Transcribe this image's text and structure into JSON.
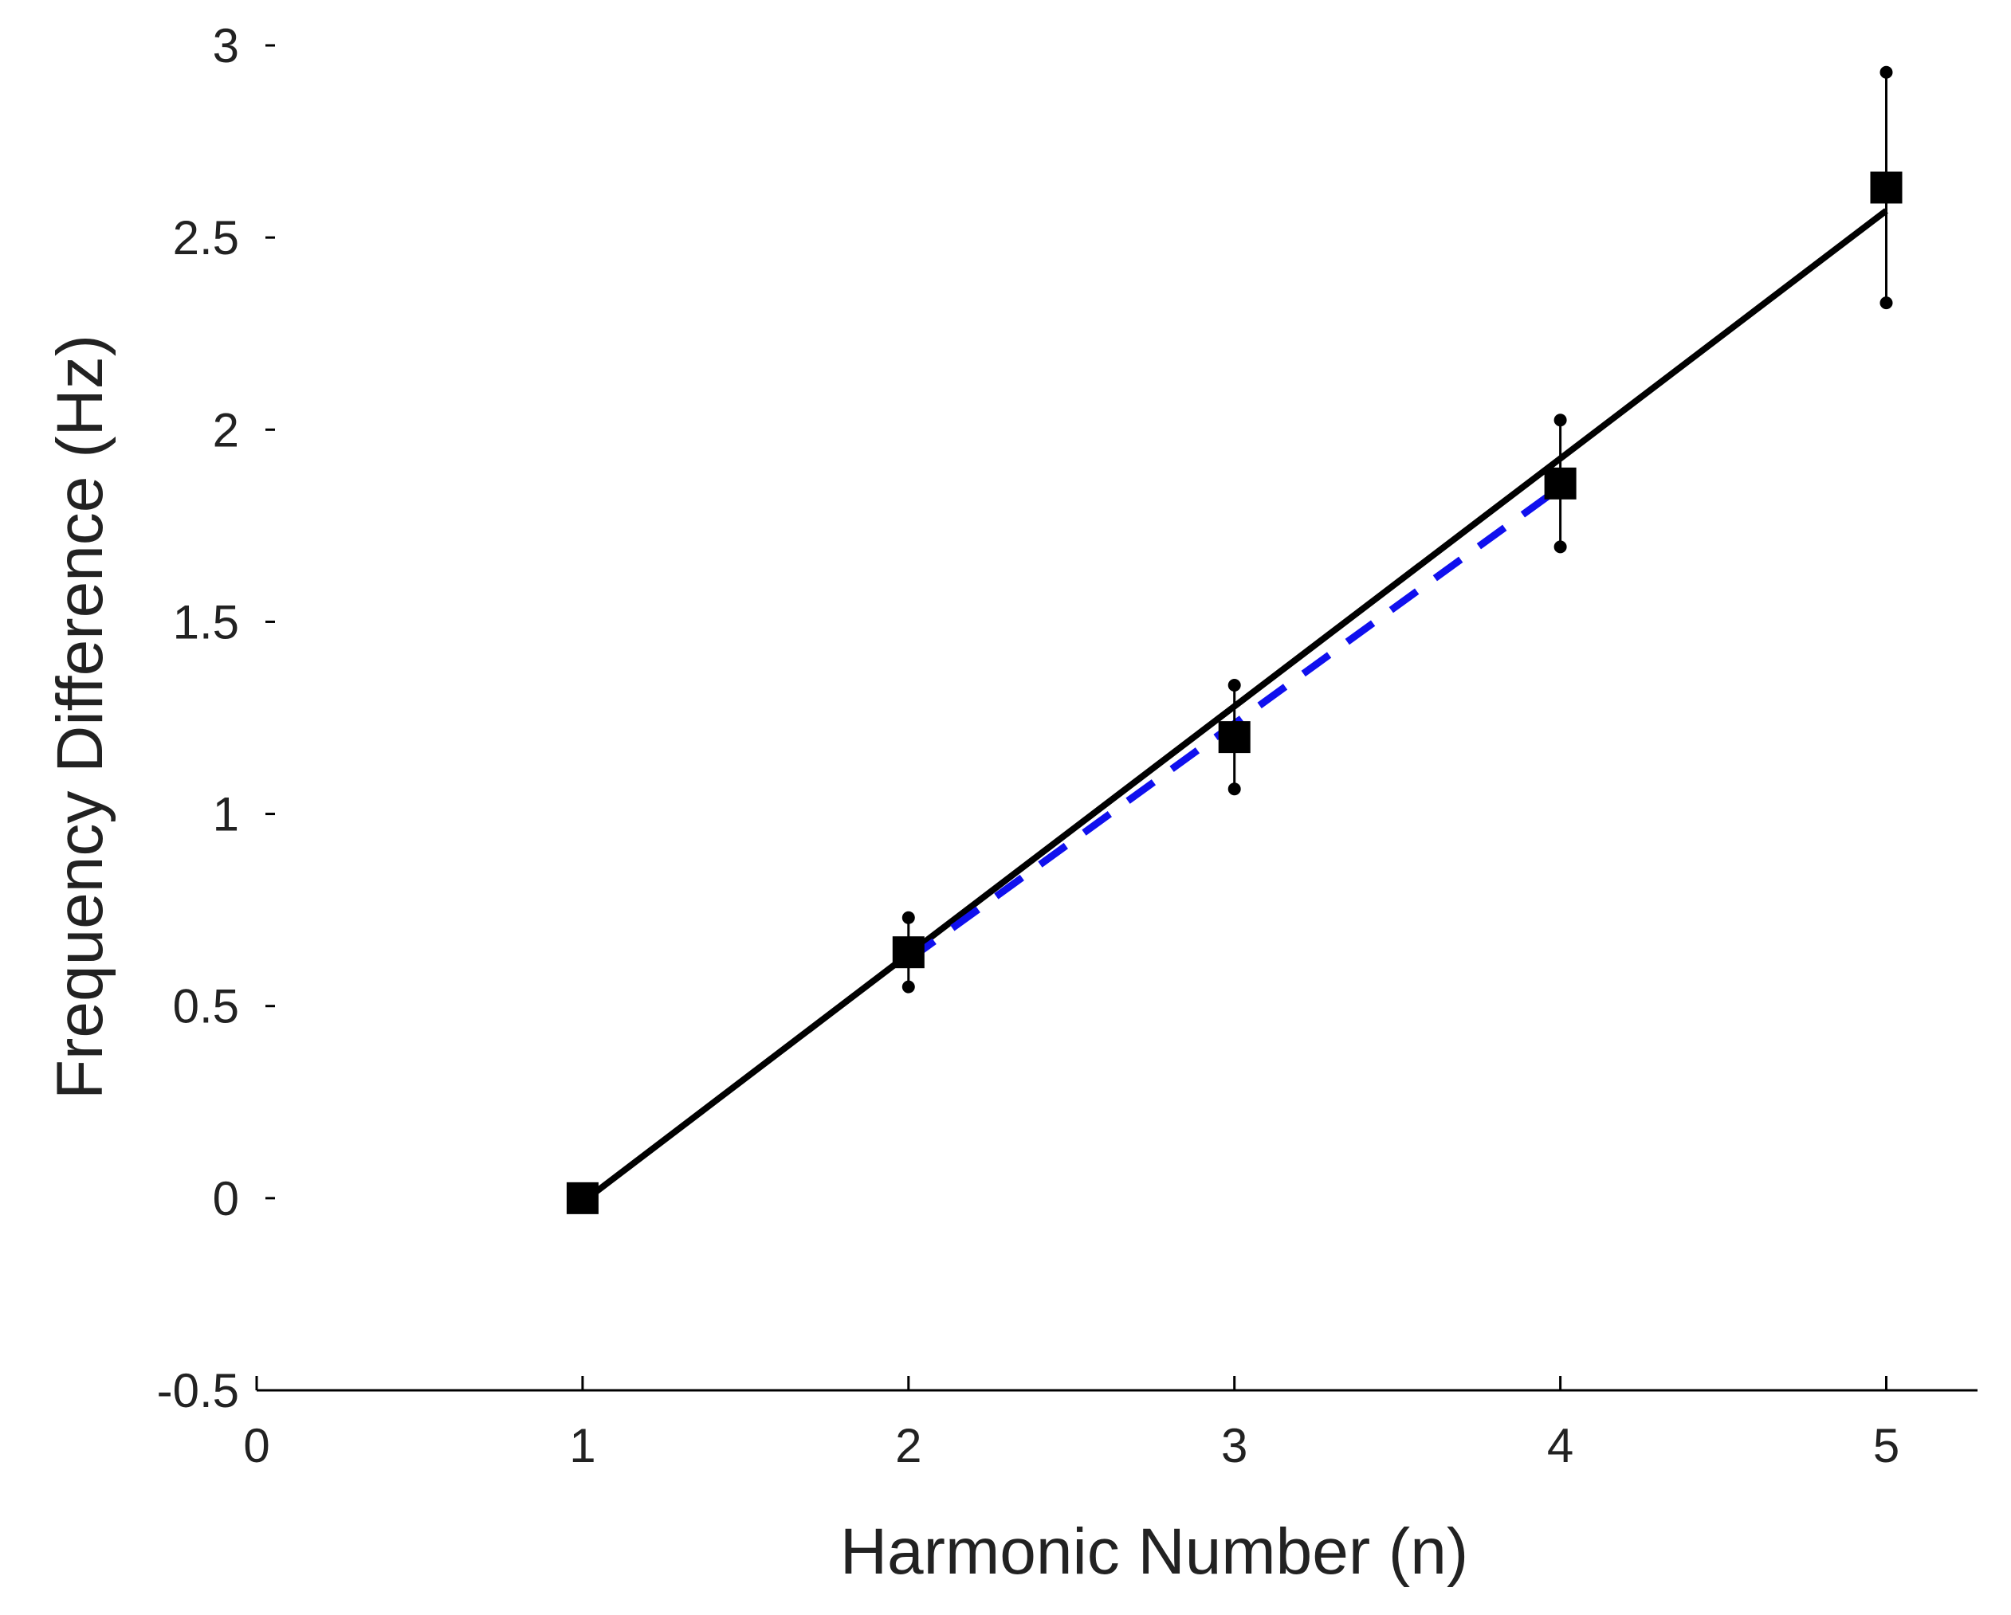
{
  "chart_data": {
    "type": "scatter",
    "x_label": "Harmonic Number (n)",
    "y_label": "Frequency Difference (Hz)",
    "points": {
      "x": [
        1,
        2,
        3,
        4,
        5
      ],
      "values": [
        0,
        0.64,
        1.2,
        1.86,
        2.63
      ],
      "errors": [
        0,
        0.09,
        0.135,
        0.165,
        0.3
      ],
      "color": "#000000"
    },
    "lines": [
      {
        "x": [
          1,
          5
        ],
        "values": [
          -0.01,
          2.57
        ],
        "color": "#000000",
        "style": "solid"
      },
      {
        "x": [
          2,
          4
        ],
        "values": [
          0.62,
          1.85
        ],
        "color": "#1010ee",
        "style": "dashed"
      }
    ],
    "xlim": [
      0,
      5.28
    ],
    "ylim": [
      -0.5,
      3
    ],
    "xticks": [
      0,
      1,
      2,
      3,
      4,
      5
    ],
    "yticks": [
      -0.5,
      0,
      0.5,
      1,
      1.5,
      2,
      2.5,
      3
    ]
  }
}
